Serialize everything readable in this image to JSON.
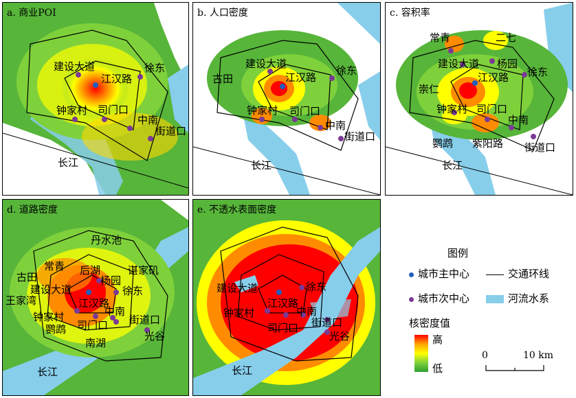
{
  "colors": {
    "high": "#ff0000",
    "mid": "#ffff00",
    "low": "#37a62e",
    "water": "#87ceeb",
    "main_center": "#1f5fbf",
    "sub_center": "#7b3a96"
  },
  "panels": [
    {
      "title": "a. 商业POI",
      "labels": [
        "建设大道",
        "江汉路",
        "徐东",
        "钟家村",
        "司门口",
        "中南",
        "街道口",
        "长江"
      ]
    },
    {
      "title": "b. 人口密度",
      "labels": [
        "古田",
        "建设大道",
        "江汉路",
        "徐东",
        "钟家村",
        "司门口",
        "中南",
        "街道口",
        "长江"
      ]
    },
    {
      "title": "c. 容积率",
      "labels": [
        "常青",
        "二七",
        "建设大道",
        "杨园",
        "徐东",
        "江汉路",
        "崇仁",
        "钟家村",
        "司门口",
        "中南",
        "鹦鹉",
        "紫阳路",
        "街道口",
        "长江"
      ]
    },
    {
      "title": "d. 道路密度",
      "labels": [
        "丹水池",
        "常青",
        "后湖",
        "谌家矶",
        "古田",
        "建设大道",
        "杨园",
        "王家湾",
        "江汉路",
        "徐东",
        "钟家村",
        "中南",
        "司门口",
        "街道口",
        "鹦鹉",
        "南湖",
        "光谷",
        "长江"
      ]
    },
    {
      "title": "e. 不透水表面密度",
      "labels": [
        "建设大道",
        "徐东",
        "江汉路",
        "中南",
        "钟家村",
        "司门口",
        "街道口",
        "光谷",
        "长江"
      ]
    }
  ],
  "legend": {
    "title": "图例",
    "main_center": "城市主中心",
    "sub_center": "城市次中心",
    "ring_road": "交通环线",
    "river": "河流水系",
    "density_title": "核密度值",
    "high": "高",
    "low": "低",
    "scale_start": "0",
    "scale_end": "10 km"
  }
}
